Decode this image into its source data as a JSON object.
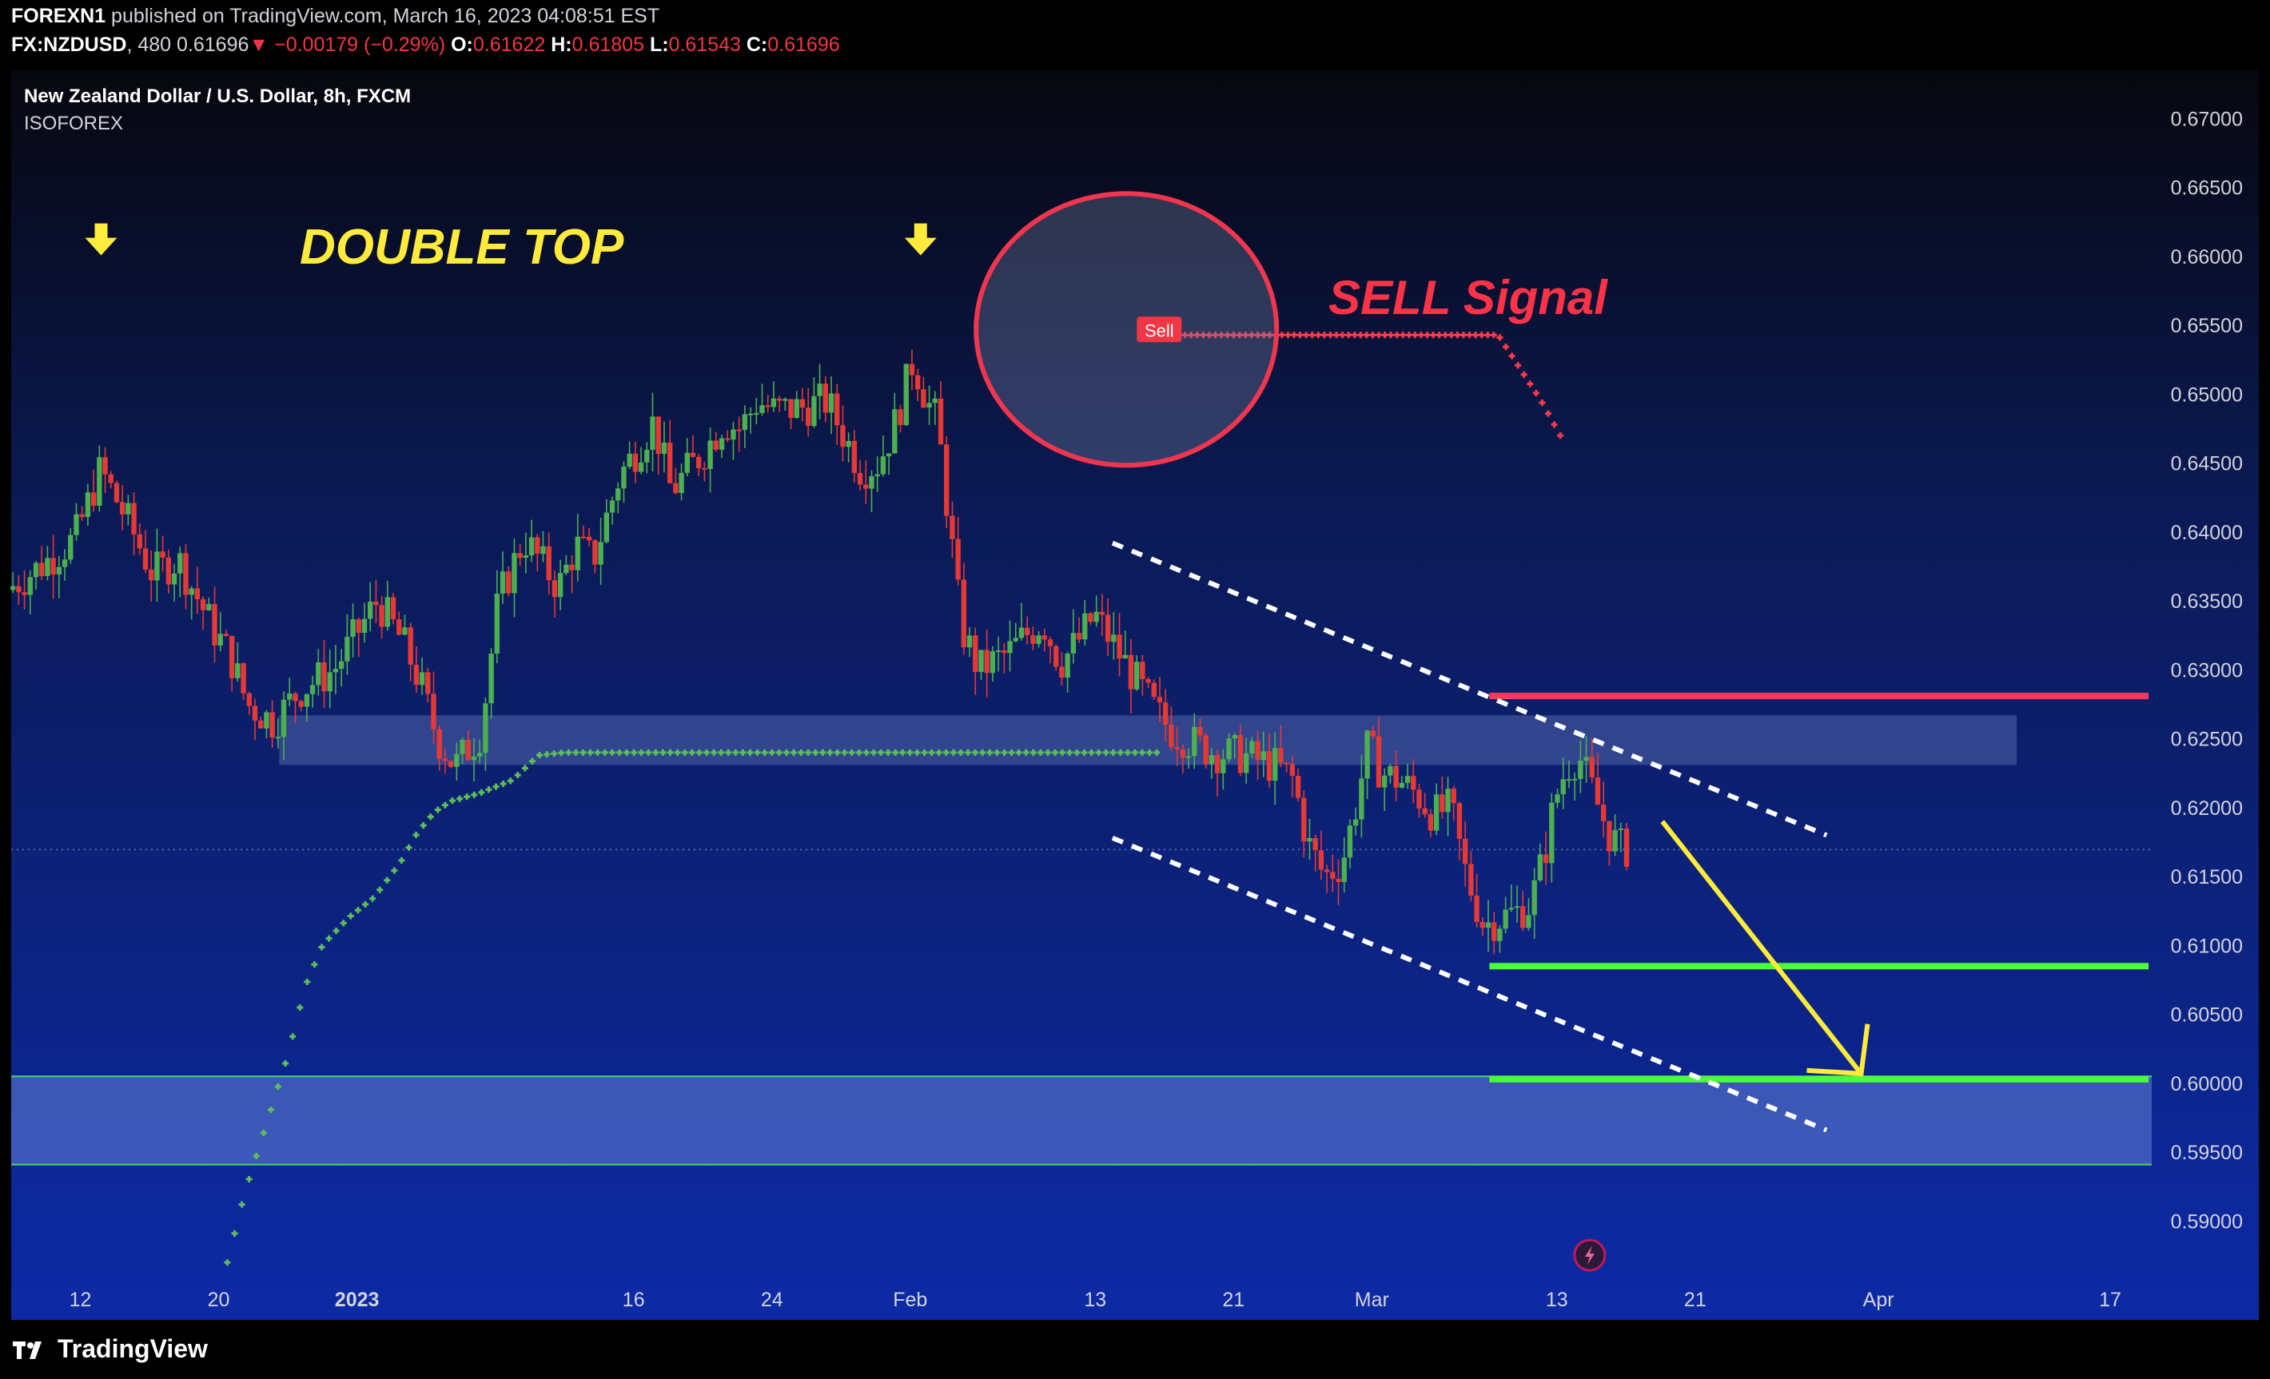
{
  "header": {
    "author": "FOREXN1",
    "published_text": "published on TradingView.com, March 16, 2023 04:08:51 EST",
    "symbol": "FX:NZDUSD",
    "interval": "480",
    "last": "0.61696",
    "change": "−0.00179 (−0.29%)",
    "o_label": "O:",
    "open": "0.61622",
    "h_label": "H:",
    "high": "0.61805",
    "l_label": "L:",
    "low": "0.61543",
    "c_label": "C:",
    "close": "0.61696"
  },
  "footer": {
    "brand": "TradingView"
  },
  "colors": {
    "background_top": "#0a0a1a",
    "background_bottom": "#0d2aa0",
    "up_candle": "#4caf50",
    "down_candle": "#e53935",
    "resistance": "#ff3b5c",
    "support": "#4cff3a",
    "yellow": "#ffeb3b",
    "channel": "#ffffff"
  },
  "chart_data": {
    "type": "candlestick",
    "title": "New Zealand Dollar / U.S. Dollar, 8h, FXCM",
    "indicator": "ISOFOREX",
    "ylim": [
      0.5855,
      0.6735
    ],
    "y_ticks": [
      "0.67000",
      "0.66500",
      "0.66000",
      "0.65500",
      "0.65000",
      "0.64500",
      "0.64000",
      "0.63500",
      "0.63000",
      "0.62500",
      "0.62000",
      "0.61500",
      "0.61000",
      "0.60500",
      "0.60000",
      "0.59500",
      "0.59000"
    ],
    "x_ticks": [
      {
        "label": "12",
        "day": 12
      },
      {
        "label": "20",
        "day": 20
      },
      {
        "label": "2023",
        "day": 28,
        "bold": true
      },
      {
        "label": "16",
        "day": 44
      },
      {
        "label": "24",
        "day": 52
      },
      {
        "label": "Feb",
        "day": 60
      },
      {
        "label": "13",
        "day": 70.7
      },
      {
        "label": "21",
        "day": 78.7
      },
      {
        "label": "Mar",
        "day": 86.7
      },
      {
        "label": "13",
        "day": 97.4
      },
      {
        "label": "21",
        "day": 105.4
      },
      {
        "label": "Apr",
        "day": 116
      },
      {
        "label": "17",
        "day": 129.4
      }
    ],
    "x_domain_days": [
      8,
      138
    ],
    "price_path": [
      [
        8.1,
        0.6358
      ],
      [
        10,
        0.6375
      ],
      [
        12,
        0.6395
      ],
      [
        13.5,
        0.6445
      ],
      [
        15,
        0.641
      ],
      [
        16.5,
        0.637
      ],
      [
        18,
        0.638
      ],
      [
        20,
        0.633
      ],
      [
        21,
        0.631
      ],
      [
        22,
        0.6275
      ],
      [
        23.5,
        0.6262
      ],
      [
        25,
        0.6285
      ],
      [
        27,
        0.63
      ],
      [
        28,
        0.632
      ],
      [
        29.5,
        0.635
      ],
      [
        31,
        0.632
      ],
      [
        32,
        0.629
      ],
      [
        33,
        0.625
      ],
      [
        34,
        0.623
      ],
      [
        35.5,
        0.6255
      ],
      [
        36.5,
        0.635
      ],
      [
        38,
        0.6395
      ],
      [
        40,
        0.636
      ],
      [
        41,
        0.639
      ],
      [
        42,
        0.638
      ],
      [
        43.5,
        0.644
      ],
      [
        44.5,
        0.646
      ],
      [
        45.5,
        0.648
      ],
      [
        46.5,
        0.643
      ],
      [
        47.5,
        0.6445
      ],
      [
        48.5,
        0.646
      ],
      [
        49.5,
        0.648
      ],
      [
        50.5,
        0.6475
      ],
      [
        51.5,
        0.6495
      ],
      [
        52.5,
        0.6488
      ],
      [
        54,
        0.649
      ],
      [
        55.5,
        0.6495
      ],
      [
        56.5,
        0.647
      ],
      [
        57.5,
        0.6445
      ],
      [
        58.5,
        0.645
      ],
      [
        59.5,
        0.648
      ],
      [
        60.5,
        0.6525
      ],
      [
        61.3,
        0.6495
      ],
      [
        61.9,
        0.648
      ],
      [
        62.6,
        0.6405
      ],
      [
        63.3,
        0.633
      ],
      [
        64.3,
        0.63
      ],
      [
        66,
        0.6312
      ],
      [
        67,
        0.6325
      ],
      [
        68,
        0.6335
      ],
      [
        69,
        0.6305
      ],
      [
        70,
        0.632
      ],
      [
        71,
        0.634
      ],
      [
        72.5,
        0.631
      ],
      [
        73.5,
        0.629
      ],
      [
        74.5,
        0.627
      ],
      [
        75.5,
        0.6255
      ],
      [
        77,
        0.6245
      ],
      [
        78,
        0.624
      ],
      [
        79.5,
        0.6238
      ],
      [
        81.5,
        0.623
      ],
      [
        82.5,
        0.622
      ],
      [
        83.3,
        0.6175
      ],
      [
        84.3,
        0.615
      ],
      [
        85.3,
        0.616
      ],
      [
        86,
        0.6195
      ],
      [
        86.8,
        0.6245
      ],
      [
        87.6,
        0.6225
      ],
      [
        88.6,
        0.622
      ],
      [
        89.6,
        0.621
      ],
      [
        90.6,
        0.6195
      ],
      [
        91.6,
        0.62
      ],
      [
        92.5,
        0.615
      ],
      [
        93.5,
        0.6115
      ],
      [
        94.5,
        0.612
      ],
      [
        95.5,
        0.6125
      ],
      [
        96.2,
        0.613
      ],
      [
        97,
        0.6165
      ],
      [
        97.6,
        0.6205
      ],
      [
        98.3,
        0.623
      ],
      [
        99,
        0.6238
      ],
      [
        100,
        0.6205
      ],
      [
        100.8,
        0.618
      ],
      [
        101.5,
        0.617
      ]
    ],
    "indicator_path": [
      [
        20.5,
        0.587
      ],
      [
        21.5,
        0.592
      ],
      [
        23,
        0.598
      ],
      [
        24,
        0.602
      ],
      [
        25,
        0.607
      ],
      [
        26,
        0.61
      ],
      [
        27.5,
        0.612
      ],
      [
        29,
        0.6135
      ],
      [
        30.5,
        0.616
      ],
      [
        31.5,
        0.6182
      ],
      [
        32.5,
        0.6197
      ],
      [
        33.5,
        0.6205
      ],
      [
        35,
        0.621
      ],
      [
        37,
        0.622
      ],
      [
        38.5,
        0.6238
      ],
      [
        40,
        0.624
      ],
      [
        74.5,
        0.624
      ]
    ],
    "sell_indicator_path": [
      [
        74.5,
        0.6543
      ],
      [
        94,
        0.6543
      ],
      [
        95.2,
        0.652
      ],
      [
        96.5,
        0.6495
      ],
      [
        97.6,
        0.647
      ]
    ],
    "zones": [
      {
        "name": "resistance-zone",
        "from_day": 23.5,
        "to_day": 124,
        "y_low": 0.6231,
        "y_high": 0.6267
      },
      {
        "name": "support-zone",
        "from_day": 8,
        "to_day": 138,
        "y_low": 0.5941,
        "y_high": 0.6005
      }
    ],
    "levels": [
      {
        "name": "resistance-line",
        "from_day": 93.5,
        "to_day": 138,
        "y": 0.6281,
        "color": "#ff3b5c"
      },
      {
        "name": "support-line-1",
        "from_day": 93.5,
        "to_day": 138,
        "y": 0.6085,
        "color": "#4cff3a"
      },
      {
        "name": "support-line-2",
        "from_day": 93.5,
        "to_day": 138,
        "y": 0.6003,
        "color": "#4cff3a"
      }
    ],
    "channel": [
      {
        "name": "channel-upper",
        "from": [
          71.7,
          0.6392
        ],
        "to": [
          113,
          0.618
        ]
      },
      {
        "name": "channel-lower",
        "from": [
          71.7,
          0.6178
        ],
        "to": [
          113,
          0.5966
        ]
      }
    ],
    "last_price_line": 0.61696,
    "annotations": {
      "double_top": "DOUBLE TOP",
      "sell_signal": "SELL Signal",
      "sell_badge": "Sell"
    },
    "arrows": [
      {
        "name": "top-arrow-1",
        "day": 13.2,
        "y": 0.661
      },
      {
        "name": "top-arrow-2",
        "day": 60.6,
        "y": 0.661
      }
    ],
    "projection_arrow": {
      "from": [
        103.5,
        0.619
      ],
      "to": [
        115,
        0.6007
      ]
    },
    "sell_circle": {
      "day": 72.5,
      "y": 0.6547
    }
  }
}
